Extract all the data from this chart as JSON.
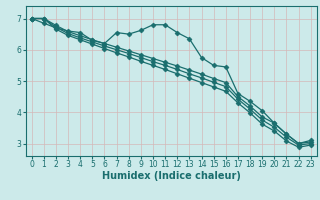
{
  "xlabel": "Humidex (Indice chaleur)",
  "xlim": [
    -0.5,
    23.5
  ],
  "ylim": [
    2.6,
    7.4
  ],
  "background_color": "#cceaea",
  "grid_color": "#aacece",
  "line_color": "#1a6e6e",
  "xticks": [
    0,
    1,
    2,
    3,
    4,
    5,
    6,
    7,
    8,
    9,
    10,
    11,
    12,
    13,
    14,
    15,
    16,
    17,
    18,
    19,
    20,
    21,
    22,
    23
  ],
  "yticks": [
    3,
    4,
    5,
    6,
    7
  ],
  "line1_x": [
    0,
    1,
    2,
    3,
    4,
    5,
    6,
    7,
    8,
    9,
    10,
    11,
    12,
    13,
    14,
    15,
    16,
    17,
    18,
    19,
    20,
    21,
    22,
    23
  ],
  "line1_y": [
    7.0,
    6.85,
    6.7,
    6.6,
    6.55,
    6.3,
    6.2,
    6.55,
    6.5,
    6.62,
    6.8,
    6.8,
    6.55,
    6.35,
    5.75,
    5.5,
    5.45,
    4.6,
    4.35,
    4.05,
    3.65,
    3.3,
    3.0,
    3.1
  ],
  "line2_x": [
    0,
    1,
    2,
    3,
    4,
    5,
    6,
    7,
    8,
    9,
    10,
    11,
    12,
    13,
    14,
    15,
    16,
    17,
    18,
    19,
    20,
    21,
    22,
    23
  ],
  "line2_y": [
    7.0,
    7.0,
    6.78,
    6.58,
    6.45,
    6.32,
    6.2,
    6.08,
    5.96,
    5.84,
    5.72,
    5.6,
    5.48,
    5.35,
    5.22,
    5.08,
    4.95,
    4.5,
    4.2,
    3.85,
    3.65,
    3.3,
    3.0,
    3.05
  ],
  "line3_x": [
    0,
    1,
    2,
    3,
    4,
    5,
    6,
    7,
    8,
    9,
    10,
    11,
    12,
    13,
    14,
    15,
    16,
    17,
    18,
    19,
    20,
    21,
    22,
    23
  ],
  "line3_y": [
    7.0,
    7.0,
    6.72,
    6.52,
    6.38,
    6.25,
    6.12,
    6.0,
    5.88,
    5.75,
    5.62,
    5.5,
    5.37,
    5.23,
    5.1,
    4.96,
    4.82,
    4.42,
    4.1,
    3.75,
    3.52,
    3.2,
    2.95,
    3.0
  ],
  "line4_x": [
    0,
    1,
    2,
    3,
    4,
    5,
    6,
    7,
    8,
    9,
    10,
    11,
    12,
    13,
    14,
    15,
    16,
    17,
    18,
    19,
    20,
    21,
    22,
    23
  ],
  "line4_y": [
    7.0,
    7.0,
    6.66,
    6.46,
    6.32,
    6.18,
    6.04,
    5.9,
    5.77,
    5.63,
    5.5,
    5.37,
    5.23,
    5.09,
    4.95,
    4.81,
    4.67,
    4.3,
    3.98,
    3.62,
    3.4,
    3.08,
    2.88,
    2.95
  ],
  "marker": "D",
  "markersize": 2.5,
  "linewidth": 0.9,
  "tick_fontsize": 5.5,
  "label_fontsize": 7
}
